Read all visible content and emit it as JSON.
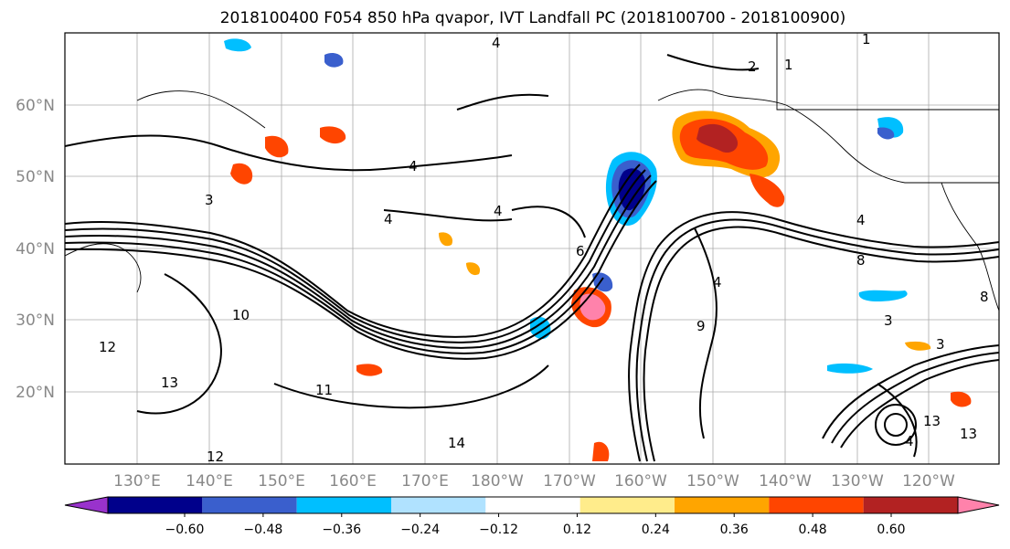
{
  "title": "2018100400 F054 850 hPa qvapor, IVT Landfall PC (2018100700 - 2018100900)",
  "lat_labels": [
    "60°N",
    "50°N",
    "40°N",
    "30°N",
    "20°N"
  ],
  "lon_labels": [
    "130°E",
    "140°E",
    "150°E",
    "160°E",
    "170°E",
    "180°W",
    "170°W",
    "160°W",
    "150°W",
    "140°W",
    "130°W",
    "120°W"
  ],
  "colorbar": {
    "ticks": [
      "−0.60",
      "−0.48",
      "−0.36",
      "−0.24",
      "−0.12",
      "0.12",
      "0.24",
      "0.36",
      "0.48",
      "0.60"
    ],
    "colors": [
      "#9932cc",
      "#00008b",
      "#3a5fcd",
      "#00bfff",
      "#b0e2ff",
      "#ffffff",
      "#ffec8b",
      "#ffa500",
      "#ff4500",
      "#b22222",
      "#ff82ab"
    ]
  },
  "contour_labels": [
    "4",
    "4",
    "4",
    "4",
    "4",
    "4",
    "4",
    "3",
    "3",
    "3",
    "2",
    "1",
    "1",
    "6",
    "8",
    "8",
    "9",
    "10",
    "11",
    "12",
    "12",
    "13",
    "13",
    "13",
    "14"
  ]
}
